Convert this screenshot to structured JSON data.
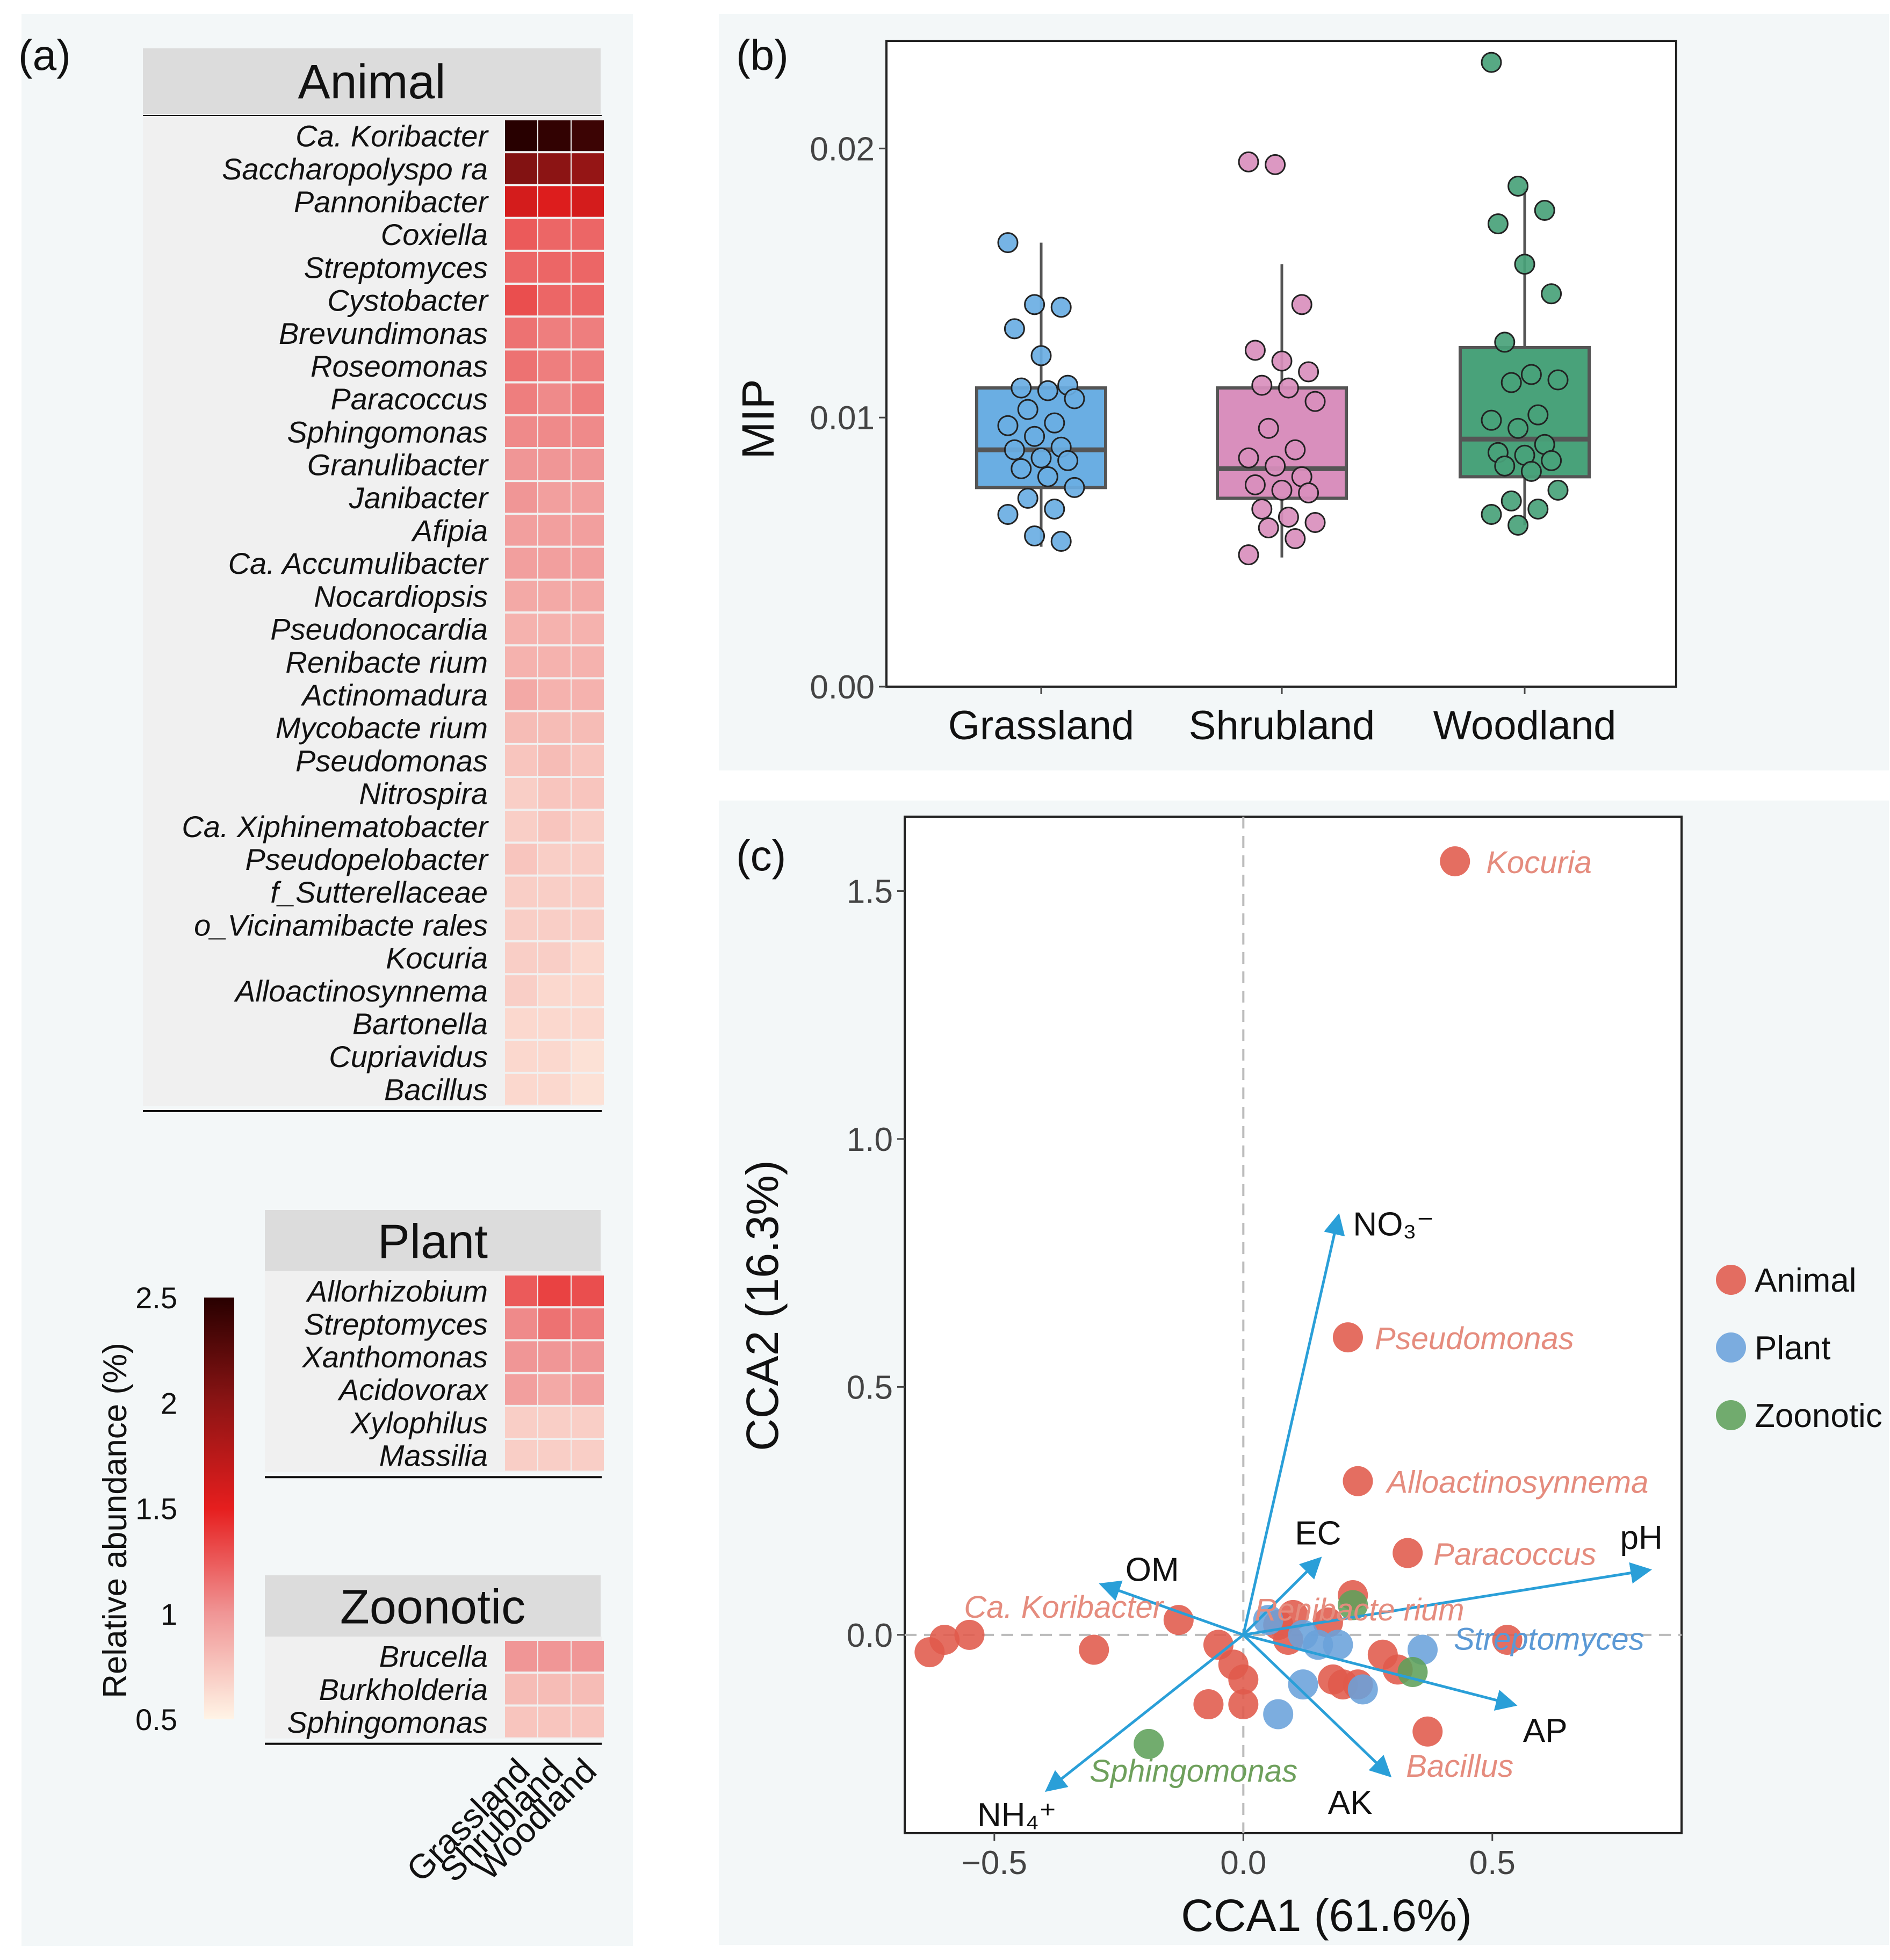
{
  "panels": {
    "a": "(a)",
    "b": "(b)",
    "c": "(c)"
  },
  "heatmap": {
    "columns": [
      "Grassland",
      "Shrubland",
      "Woodland"
    ],
    "colorbar": {
      "title": "Relative abundance (%)",
      "ticks": [
        "2.5",
        "2",
        "1.5",
        "1",
        "0.5"
      ],
      "min": 0.5,
      "max": 2.5
    },
    "groups": [
      {
        "name": "Animal",
        "rows": [
          {
            "taxon": "Ca. Koribacter",
            "values": [
              2.5,
              2.45,
              2.4
            ]
          },
          {
            "taxon": "Saccharopolyspo ra",
            "values": [
              2.05,
              2.0,
              1.95
            ]
          },
          {
            "taxon": "Pannonibacter",
            "values": [
              1.6,
              1.55,
              1.6
            ]
          },
          {
            "taxon": "Coxiella",
            "values": [
              1.25,
              1.2,
              1.2
            ]
          },
          {
            "taxon": "Streptomyces",
            "values": [
              1.2,
              1.2,
              1.2
            ]
          },
          {
            "taxon": "Cystobacter",
            "values": [
              1.3,
              1.2,
              1.2
            ]
          },
          {
            "taxon": "Brevundimonas",
            "values": [
              1.15,
              1.1,
              1.1
            ]
          },
          {
            "taxon": "Roseomonas",
            "values": [
              1.15,
              1.1,
              1.1
            ]
          },
          {
            "taxon": "Paracoccus",
            "values": [
              1.1,
              1.05,
              1.1
            ]
          },
          {
            "taxon": "Sphingomonas",
            "values": [
              1.05,
              1.05,
              1.05
            ]
          },
          {
            "taxon": "Granulibacter",
            "values": [
              1.0,
              1.0,
              1.0
            ]
          },
          {
            "taxon": "Janibacter",
            "values": [
              1.0,
              0.95,
              0.95
            ]
          },
          {
            "taxon": "Afipia",
            "values": [
              0.95,
              0.95,
              0.95
            ]
          },
          {
            "taxon": "Ca. Accumulibacter",
            "values": [
              0.95,
              0.95,
              0.95
            ]
          },
          {
            "taxon": "Nocardiopsis",
            "values": [
              0.9,
              0.9,
              0.9
            ]
          },
          {
            "taxon": "Pseudonocardia",
            "values": [
              0.85,
              0.85,
              0.85
            ]
          },
          {
            "taxon": "Renibacte rium",
            "values": [
              0.85,
              0.85,
              0.85
            ]
          },
          {
            "taxon": "Actinomadura",
            "values": [
              0.9,
              0.85,
              0.85
            ]
          },
          {
            "taxon": "Mycobacte rium",
            "values": [
              0.8,
              0.8,
              0.8
            ]
          },
          {
            "taxon": "Pseudomonas",
            "values": [
              0.75,
              0.8,
              0.75
            ]
          },
          {
            "taxon": "Nitrospira",
            "values": [
              0.7,
              0.75,
              0.75
            ]
          },
          {
            "taxon": "Ca. Xiphinematobacter",
            "values": [
              0.7,
              0.75,
              0.7
            ]
          },
          {
            "taxon": "Pseudopelobacter",
            "values": [
              0.75,
              0.7,
              0.7
            ]
          },
          {
            "taxon": "f_Sutterellaceae",
            "values": [
              0.7,
              0.7,
              0.7
            ]
          },
          {
            "taxon": "o_Vicinamibacte rales",
            "values": [
              0.7,
              0.7,
              0.7
            ]
          },
          {
            "taxon": "Kocuria",
            "values": [
              0.7,
              0.7,
              0.65
            ]
          },
          {
            "taxon": "Alloactinosynnema",
            "values": [
              0.7,
              0.65,
              0.65
            ]
          },
          {
            "taxon": "Bartonella",
            "values": [
              0.65,
              0.65,
              0.65
            ]
          },
          {
            "taxon": "Cupriavidus",
            "values": [
              0.65,
              0.65,
              0.6
            ]
          },
          {
            "taxon": "Bacillus",
            "values": [
              0.65,
              0.65,
              0.6
            ]
          }
        ]
      },
      {
        "name": "Plant",
        "rows": [
          {
            "taxon": "Allorhizobium",
            "values": [
              1.25,
              1.35,
              1.3
            ]
          },
          {
            "taxon": "Streptomyces",
            "values": [
              1.05,
              1.15,
              1.1
            ]
          },
          {
            "taxon": "Xanthomonas",
            "values": [
              1.0,
              1.0,
              1.0
            ]
          },
          {
            "taxon": "Acidovorax",
            "values": [
              0.95,
              0.9,
              0.95
            ]
          },
          {
            "taxon": "Xylophilus",
            "values": [
              0.7,
              0.7,
              0.7
            ]
          },
          {
            "taxon": "Massilia",
            "values": [
              0.7,
              0.7,
              0.7
            ]
          }
        ]
      },
      {
        "name": "Zoonotic",
        "rows": [
          {
            "taxon": "Brucella",
            "values": [
              1.0,
              1.0,
              1.0
            ]
          },
          {
            "taxon": "Burkholderia",
            "values": [
              0.8,
              0.8,
              0.8
            ]
          },
          {
            "taxon": "Sphingomonas",
            "values": [
              0.75,
              0.75,
              0.75
            ]
          }
        ]
      }
    ]
  },
  "chart_data": [
    {
      "type": "box",
      "ylabel": "MIP",
      "ylim": [
        0,
        0.024
      ],
      "yticks": [
        "0.00",
        "0.01",
        "0.02"
      ],
      "categories": [
        "Grassland",
        "Shrubland",
        "Woodland"
      ],
      "colors": [
        "#6aaee3",
        "#d98fbd",
        "#49a27a"
      ],
      "boxes": [
        {
          "min": 0.0052,
          "q1": 0.0074,
          "median": 0.0088,
          "q3": 0.0111,
          "max": 0.0165
        },
        {
          "min": 0.0048,
          "q1": 0.007,
          "median": 0.0081,
          "q3": 0.0111,
          "max": 0.0157
        },
        {
          "min": 0.006,
          "q1": 0.0078,
          "median": 0.0092,
          "q3": 0.0126,
          "max": 0.0185
        }
      ],
      "points": [
        [
          0.0165,
          0.0142,
          0.0141,
          0.0133,
          0.0123,
          0.0112,
          0.0111,
          0.011,
          0.0107,
          0.0103,
          0.0098,
          0.0097,
          0.0093,
          0.0089,
          0.0088,
          0.0085,
          0.0084,
          0.0081,
          0.0078,
          0.0074,
          0.007,
          0.0066,
          0.0064,
          0.0056,
          0.0054
        ],
        [
          0.0195,
          0.0194,
          0.0142,
          0.0125,
          0.0121,
          0.0117,
          0.0112,
          0.0111,
          0.0106,
          0.0096,
          0.0088,
          0.0085,
          0.0082,
          0.0078,
          0.0075,
          0.0073,
          0.0072,
          0.0066,
          0.0063,
          0.0061,
          0.0059,
          0.0055,
          0.0049
        ],
        [
          0.0232,
          0.0186,
          0.0177,
          0.0172,
          0.0157,
          0.0146,
          0.0128,
          0.0116,
          0.0114,
          0.0113,
          0.0101,
          0.0099,
          0.0096,
          0.009,
          0.0087,
          0.0086,
          0.0084,
          0.0082,
          0.008,
          0.0073,
          0.0069,
          0.0066,
          0.0064,
          0.006
        ]
      ]
    },
    {
      "type": "scatter",
      "xlabel": "CCA1 (61.6%)",
      "ylabel": "CCA2 (16.3%)",
      "xlim": [
        -0.68,
        0.88
      ],
      "ylim": [
        -0.4,
        1.65
      ],
      "xticks": [
        "−0.5",
        "0.0",
        "0.5"
      ],
      "yticks": [
        "0.0",
        "0.5",
        "1.0",
        "1.5"
      ],
      "legend": [
        {
          "name": "Animal",
          "color": "#e05a4b"
        },
        {
          "name": "Plant",
          "color": "#6aa2db"
        },
        {
          "name": "Zoonotic",
          "color": "#5fa05a"
        }
      ],
      "vectors": [
        {
          "name": "NO₃⁻",
          "x": 0.19,
          "y": 0.84
        },
        {
          "name": "EC",
          "x": 0.15,
          "y": 0.15
        },
        {
          "name": "pH",
          "x": 0.81,
          "y": 0.13
        },
        {
          "name": "OM",
          "x": -0.28,
          "y": 0.1
        },
        {
          "name": "AP",
          "x": 0.54,
          "y": -0.14
        },
        {
          "name": "AK",
          "x": 0.29,
          "y": -0.28
        },
        {
          "name": "NH₄⁺",
          "x": -0.39,
          "y": -0.31
        }
      ],
      "labels": [
        {
          "name": "Kocuria",
          "group": "Animal"
        },
        {
          "name": "Pseudomonas",
          "group": "Animal"
        },
        {
          "name": "Alloactinosynnema",
          "group": "Animal"
        },
        {
          "name": "Paracoccus",
          "group": "Animal"
        },
        {
          "name": "Renibacte rium",
          "group": "Animal"
        },
        {
          "name": "Ca. Koribacter",
          "group": "Animal"
        },
        {
          "name": "Bacillus",
          "group": "Animal"
        },
        {
          "name": "Streptomyces",
          "group": "Plant"
        },
        {
          "name": "Sphingomonas",
          "group": "Zoonotic"
        }
      ],
      "points": [
        {
          "x": 0.425,
          "y": 1.56,
          "group": "Animal",
          "label": "Kocuria"
        },
        {
          "x": 0.21,
          "y": 0.6,
          "group": "Animal",
          "label": "Pseudomonas"
        },
        {
          "x": 0.23,
          "y": 0.31,
          "group": "Animal",
          "label": "Alloactinosynnema"
        },
        {
          "x": 0.33,
          "y": 0.165,
          "group": "Animal",
          "label": "Paracoccus"
        },
        {
          "x": 0.53,
          "y": -0.01,
          "group": "Animal",
          "label": "Renibacte rium"
        },
        {
          "x": -0.63,
          "y": -0.035,
          "group": "Animal",
          "label": "Ca. Koribacter"
        },
        {
          "x": -0.6,
          "y": -0.01,
          "group": "Animal"
        },
        {
          "x": -0.55,
          "y": 0.0,
          "group": "Animal"
        },
        {
          "x": -0.3,
          "y": -0.03,
          "group": "Animal"
        },
        {
          "x": -0.13,
          "y": 0.03,
          "group": "Animal"
        },
        {
          "x": -0.05,
          "y": -0.02,
          "group": "Animal"
        },
        {
          "x": -0.02,
          "y": -0.06,
          "group": "Animal"
        },
        {
          "x": 0.0,
          "y": -0.09,
          "group": "Animal"
        },
        {
          "x": 0.0,
          "y": -0.14,
          "group": "Animal"
        },
        {
          "x": -0.07,
          "y": -0.14,
          "group": "Animal"
        },
        {
          "x": 0.07,
          "y": 0.02,
          "group": "Animal"
        },
        {
          "x": 0.09,
          "y": -0.01,
          "group": "Animal"
        },
        {
          "x": 0.1,
          "y": 0.04,
          "group": "Animal"
        },
        {
          "x": 0.17,
          "y": 0.025,
          "group": "Animal"
        },
        {
          "x": 0.22,
          "y": 0.08,
          "group": "Animal"
        },
        {
          "x": 0.18,
          "y": -0.09,
          "group": "Animal"
        },
        {
          "x": 0.2,
          "y": -0.1,
          "group": "Animal"
        },
        {
          "x": 0.23,
          "y": -0.1,
          "group": "Animal"
        },
        {
          "x": 0.28,
          "y": -0.04,
          "group": "Animal"
        },
        {
          "x": 0.31,
          "y": -0.07,
          "group": "Animal"
        },
        {
          "x": 0.37,
          "y": -0.195,
          "group": "Animal",
          "label": "Bacillus"
        },
        {
          "x": 0.05,
          "y": 0.03,
          "group": "Plant"
        },
        {
          "x": 0.12,
          "y": 0.0,
          "group": "Plant"
        },
        {
          "x": 0.15,
          "y": -0.02,
          "group": "Plant"
        },
        {
          "x": 0.19,
          "y": -0.02,
          "group": "Plant"
        },
        {
          "x": 0.12,
          "y": -0.1,
          "group": "Plant"
        },
        {
          "x": 0.07,
          "y": -0.16,
          "group": "Plant"
        },
        {
          "x": 0.24,
          "y": -0.11,
          "group": "Plant"
        },
        {
          "x": 0.36,
          "y": -0.03,
          "group": "Plant",
          "label": "Streptomyces"
        },
        {
          "x": 0.22,
          "y": 0.06,
          "group": "Zoonotic"
        },
        {
          "x": 0.34,
          "y": -0.075,
          "group": "Zoonotic"
        },
        {
          "x": -0.19,
          "y": -0.22,
          "group": "Zoonotic",
          "label": "Sphingomonas"
        }
      ]
    }
  ]
}
